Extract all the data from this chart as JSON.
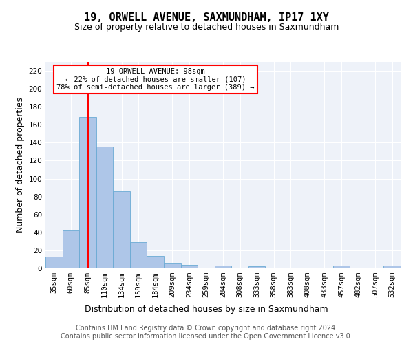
{
  "title1": "19, ORWELL AVENUE, SAXMUNDHAM, IP17 1XY",
  "title2": "Size of property relative to detached houses in Saxmundham",
  "xlabel": "Distribution of detached houses by size in Saxmundham",
  "ylabel": "Number of detached properties",
  "categories": [
    "35sqm",
    "60sqm",
    "85sqm",
    "110sqm",
    "134sqm",
    "159sqm",
    "184sqm",
    "209sqm",
    "234sqm",
    "259sqm",
    "284sqm",
    "308sqm",
    "333sqm",
    "358sqm",
    "383sqm",
    "408sqm",
    "433sqm",
    "457sqm",
    "482sqm",
    "507sqm",
    "532sqm"
  ],
  "values": [
    13,
    42,
    169,
    136,
    86,
    29,
    14,
    6,
    4,
    0,
    3,
    0,
    2,
    0,
    0,
    0,
    0,
    3,
    0,
    0,
    3
  ],
  "bar_color": "#aec6e8",
  "bar_edge_color": "#6aaad4",
  "annotation_text": "19 ORWELL AVENUE: 98sqm\n← 22% of detached houses are smaller (107)\n78% of semi-detached houses are larger (389) →",
  "annotation_box_color": "white",
  "annotation_box_edge_color": "red",
  "ylim": [
    0,
    230
  ],
  "yticks": [
    0,
    20,
    40,
    60,
    80,
    100,
    120,
    140,
    160,
    180,
    200,
    220
  ],
  "footer1": "Contains HM Land Registry data © Crown copyright and database right 2024.",
  "footer2": "Contains public sector information licensed under the Open Government Licence v3.0.",
  "background_color": "#eef2f9",
  "grid_color": "white",
  "title1_fontsize": 11,
  "title2_fontsize": 9,
  "xlabel_fontsize": 9,
  "ylabel_fontsize": 9,
  "footer_fontsize": 7,
  "tick_fontsize": 7.5
}
